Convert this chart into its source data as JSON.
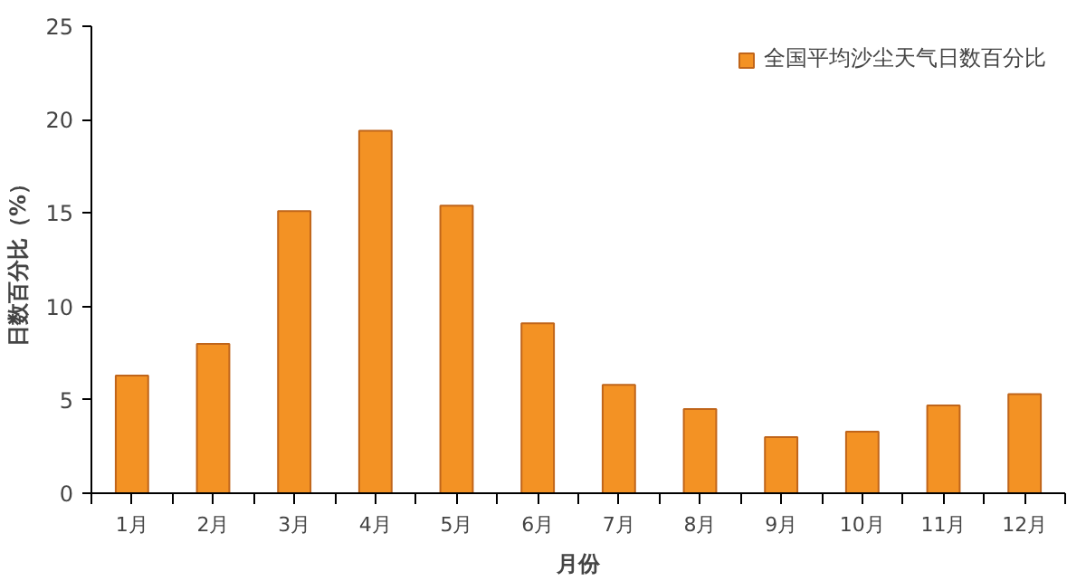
{
  "chart_data": {
    "type": "bar",
    "xlabel": "月份",
    "ylabel": "日数百分比（%）",
    "categories": [
      "1月",
      "2月",
      "3月",
      "4月",
      "5月",
      "6月",
      "7月",
      "8月",
      "9月",
      "10月",
      "11月",
      "12月"
    ],
    "series": [
      {
        "name": "全国平均沙尘天气日数百分比",
        "color": "#f39224",
        "values": [
          6.3,
          8.0,
          15.1,
          19.4,
          15.4,
          9.1,
          5.8,
          4.5,
          3.0,
          3.3,
          4.7,
          5.3
        ]
      }
    ],
    "ylim": [
      0,
      25
    ],
    "yticks": [
      0,
      5,
      10,
      15,
      20,
      25
    ],
    "grid": false,
    "legend": "top right"
  }
}
